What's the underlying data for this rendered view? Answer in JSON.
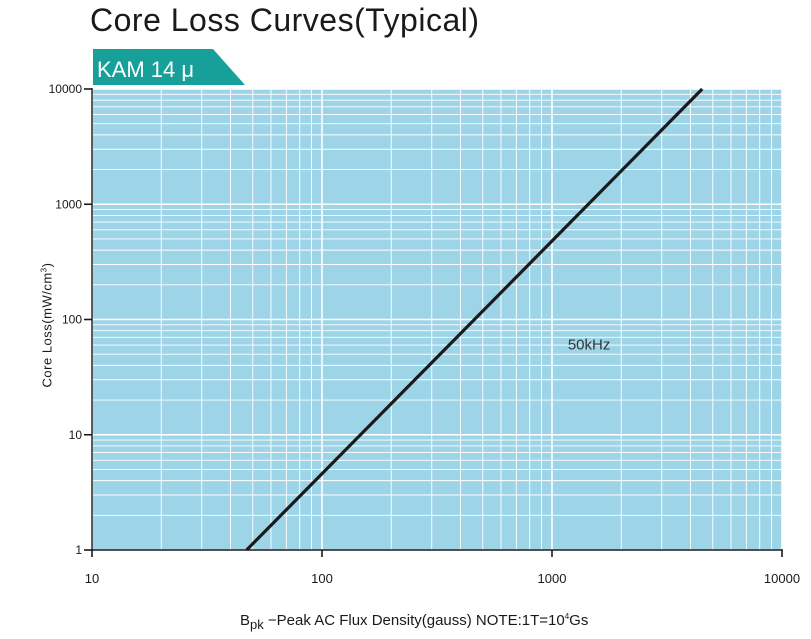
{
  "title": "Core Loss Curves(Typical)",
  "tag": {
    "label": "KAM 14 μ",
    "color": "#17a09a"
  },
  "chart_data": {
    "type": "line",
    "xscale": "log",
    "yscale": "log",
    "xlim": [
      10,
      10000
    ],
    "ylim": [
      1,
      10000
    ],
    "xticks": [
      10,
      100,
      1000,
      10000
    ],
    "xtick_labels": [
      "10",
      "100",
      "1000",
      "10000"
    ],
    "yticks": [
      1,
      10,
      100,
      1000,
      10000
    ],
    "ytick_labels": [
      "1",
      "10",
      "100",
      "1000",
      "10000"
    ],
    "xlabel": {
      "symbol": "B",
      "subscript": "pk",
      "text": " −Peak AC Flux Density(gauss)  NOTE:1T=10",
      "superscript": "4",
      "suffix": "Gs"
    },
    "ylabel": {
      "text": "Core Loss(mW/cm",
      "superscript": "3",
      "suffix": ")"
    },
    "grid": true,
    "plot_background": "#9dd4e8",
    "grid_color": "#ffffff",
    "series": [
      {
        "name": "50kHz",
        "color": "#1a1a1a",
        "x": [
          47,
          4500
        ],
        "y": [
          1,
          10000
        ]
      }
    ],
    "annotations": [
      {
        "text": "50kHz",
        "x": 1450,
        "y": 55
      }
    ]
  }
}
